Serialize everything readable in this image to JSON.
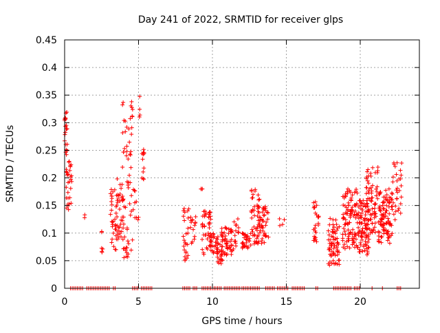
{
  "chart_data": {
    "type": "scatter",
    "title": "Day 241 of 2022, SRMTID for receiver glps",
    "xlabel": "GPS time / hours",
    "ylabel": "SRMTID / TECUs",
    "xlim": [
      0,
      24
    ],
    "ylim": [
      0,
      0.45
    ],
    "xticks": [
      0,
      5,
      10,
      15,
      20
    ],
    "xtick_labels": [
      "0",
      "5",
      "10",
      "15",
      "20"
    ],
    "yticks": [
      0,
      0.05,
      0.1,
      0.15,
      0.2,
      0.25,
      0.3,
      0.35,
      0.4,
      0.45
    ],
    "ytick_labels": [
      "0",
      "0.05",
      "0.1",
      "0.15",
      "0.2",
      "0.25",
      "0.3",
      "0.35",
      "0.4",
      "0.45"
    ],
    "grid": true,
    "marker": "+",
    "color": "#ff0000",
    "clusters": [
      {
        "x": [
          0.0,
          0.2
        ],
        "y": [
          0.24,
          0.32
        ],
        "n": 20
      },
      {
        "x": [
          0.1,
          0.5
        ],
        "y": [
          0.14,
          0.23
        ],
        "n": 30
      },
      {
        "x": [
          1.3,
          1.4
        ],
        "y": [
          0.1,
          0.14
        ],
        "n": 2
      },
      {
        "x": [
          2.4,
          2.6
        ],
        "y": [
          0.06,
          0.11
        ],
        "n": 6
      },
      {
        "x": [
          3.1,
          3.5
        ],
        "y": [
          0.06,
          0.18
        ],
        "n": 30
      },
      {
        "x": [
          3.5,
          3.9
        ],
        "y": [
          0.08,
          0.2
        ],
        "n": 30
      },
      {
        "x": [
          3.9,
          4.6
        ],
        "y": [
          0.05,
          0.34
        ],
        "n": 70
      },
      {
        "x": [
          4.6,
          5.0
        ],
        "y": [
          0.12,
          0.2
        ],
        "n": 10
      },
      {
        "x": [
          5.0,
          5.2
        ],
        "y": [
          0.3,
          0.35
        ],
        "n": 4
      },
      {
        "x": [
          5.2,
          5.4
        ],
        "y": [
          0.18,
          0.26
        ],
        "n": 12
      },
      {
        "x": [
          8.0,
          8.4
        ],
        "y": [
          0.05,
          0.15
        ],
        "n": 25
      },
      {
        "x": [
          8.5,
          8.9
        ],
        "y": [
          0.08,
          0.13
        ],
        "n": 15
      },
      {
        "x": [
          9.2,
          9.4
        ],
        "y": [
          0.18,
          0.18
        ],
        "n": 4
      },
      {
        "x": [
          9.3,
          9.9
        ],
        "y": [
          0.06,
          0.14
        ],
        "n": 40
      },
      {
        "x": [
          9.8,
          10.4
        ],
        "y": [
          0.06,
          0.1
        ],
        "n": 30
      },
      {
        "x": [
          10.3,
          10.7
        ],
        "y": [
          0.04,
          0.08
        ],
        "n": 20
      },
      {
        "x": [
          10.6,
          11.4
        ],
        "y": [
          0.06,
          0.11
        ],
        "n": 50
      },
      {
        "x": [
          11.4,
          11.8
        ],
        "y": [
          0.07,
          0.14
        ],
        "n": 15
      },
      {
        "x": [
          12.0,
          12.6
        ],
        "y": [
          0.07,
          0.1
        ],
        "n": 30
      },
      {
        "x": [
          12.6,
          13.2
        ],
        "y": [
          0.08,
          0.18
        ],
        "n": 40
      },
      {
        "x": [
          13.0,
          13.8
        ],
        "y": [
          0.08,
          0.15
        ],
        "n": 50
      },
      {
        "x": [
          14.5,
          15.0
        ],
        "y": [
          0.1,
          0.13
        ],
        "n": 4
      },
      {
        "x": [
          16.8,
          17.2
        ],
        "y": [
          0.08,
          0.16
        ],
        "n": 25
      },
      {
        "x": [
          17.8,
          18.6
        ],
        "y": [
          0.04,
          0.13
        ],
        "n": 70
      },
      {
        "x": [
          18.8,
          19.8
        ],
        "y": [
          0.07,
          0.18
        ],
        "n": 100
      },
      {
        "x": [
          19.8,
          20.6
        ],
        "y": [
          0.06,
          0.16
        ],
        "n": 90
      },
      {
        "x": [
          20.4,
          21.2
        ],
        "y": [
          0.1,
          0.22
        ],
        "n": 70
      },
      {
        "x": [
          21.2,
          22.2
        ],
        "y": [
          0.08,
          0.18
        ],
        "n": 100
      },
      {
        "x": [
          22.2,
          22.8
        ],
        "y": [
          0.12,
          0.23
        ],
        "n": 30
      }
    ],
    "zero_intervals": [
      [
        0.4,
        1.3
      ],
      [
        1.5,
        3.1
      ],
      [
        3.3,
        3.5
      ],
      [
        4.6,
        5.0
      ],
      [
        5.2,
        5.9
      ],
      [
        8.0,
        8.5
      ],
      [
        8.7,
        9.0
      ],
      [
        9.3,
        10.6
      ],
      [
        10.8,
        11.9
      ],
      [
        12.0,
        13.2
      ],
      [
        13.6,
        14.2
      ],
      [
        14.4,
        15.2
      ],
      [
        15.4,
        16.3
      ],
      [
        17.0,
        17.2
      ],
      [
        18.2,
        19.4
      ],
      [
        19.6,
        20.0
      ],
      [
        20.8,
        20.9
      ],
      [
        21.5,
        21.6
      ],
      [
        22.5,
        22.8
      ]
    ]
  }
}
